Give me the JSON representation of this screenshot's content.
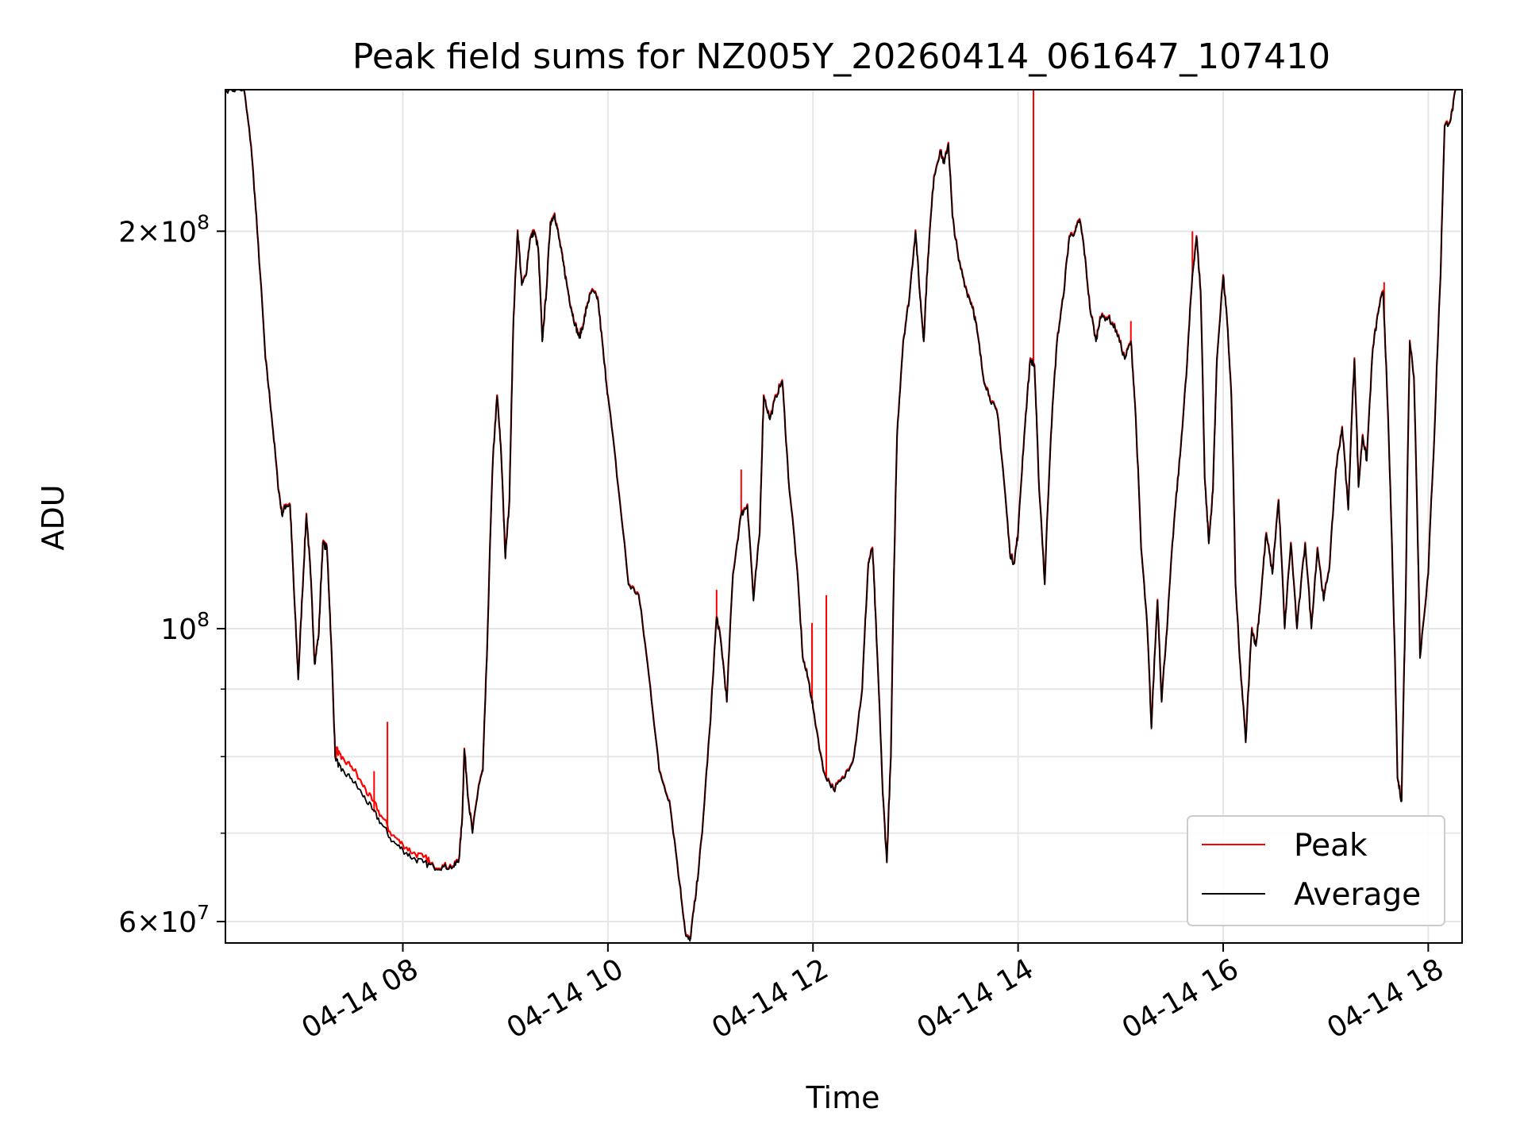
{
  "chart_data": {
    "type": "line",
    "title": "Peak field sums for NZ005Y_20260414_061647_107410",
    "xlabel": "Time",
    "ylabel": "ADU",
    "yscale": "log",
    "xlim_hours": [
      6.27,
      18.33
    ],
    "ylim": [
      57800000,
      256000000
    ],
    "grid": true,
    "legend_position": "lower-right",
    "x_ticks": [
      {
        "hour": 8,
        "label": "04-14 08"
      },
      {
        "hour": 10,
        "label": "04-14 10"
      },
      {
        "hour": 12,
        "label": "04-14 12"
      },
      {
        "hour": 14,
        "label": "04-14 14"
      },
      {
        "hour": 16,
        "label": "04-14 16"
      },
      {
        "hour": 18,
        "label": "04-14 18"
      }
    ],
    "y_major_ticks": [
      {
        "value": 60000000,
        "mantissa": "6",
        "exponent": "7"
      },
      {
        "value": 100000000,
        "mantissa": "",
        "exponent": "8"
      },
      {
        "value": 200000000,
        "mantissa": "2",
        "exponent": "8"
      }
    ],
    "y_minor_ticks": [
      70000000,
      80000000,
      90000000
    ],
    "series": [
      {
        "name": "Peak",
        "color": "#ff0000"
      },
      {
        "name": "Average",
        "color": "#000000"
      }
    ],
    "average_points": [
      [
        6.27,
        256
      ],
      [
        6.45,
        256
      ],
      [
        6.52,
        232
      ],
      [
        6.58,
        200
      ],
      [
        6.66,
        160
      ],
      [
        6.72,
        145
      ],
      [
        6.78,
        129
      ],
      [
        6.82,
        122
      ],
      [
        6.86,
        124
      ],
      [
        6.9,
        124
      ],
      [
        6.94,
        106
      ],
      [
        6.98,
        91.5
      ],
      [
        7.02,
        106
      ],
      [
        7.06,
        122
      ],
      [
        7.1,
        110
      ],
      [
        7.14,
        94
      ],
      [
        7.18,
        99
      ],
      [
        7.22,
        116
      ],
      [
        7.26,
        115
      ],
      [
        7.3,
        98
      ],
      [
        7.34,
        80
      ],
      [
        7.4,
        78
      ],
      [
        7.5,
        77
      ],
      [
        7.6,
        75
      ],
      [
        7.7,
        73
      ],
      [
        7.8,
        71
      ],
      [
        7.9,
        69
      ],
      [
        8.0,
        68
      ],
      [
        8.1,
        67
      ],
      [
        8.2,
        66.5
      ],
      [
        8.3,
        66
      ],
      [
        8.4,
        66
      ],
      [
        8.5,
        66
      ],
      [
        8.55,
        67
      ],
      [
        8.58,
        72
      ],
      [
        8.6,
        81
      ],
      [
        8.64,
        74
      ],
      [
        8.68,
        70
      ],
      [
        8.74,
        76
      ],
      [
        8.78,
        78
      ],
      [
        8.82,
        95
      ],
      [
        8.88,
        135
      ],
      [
        8.92,
        150
      ],
      [
        8.96,
        135
      ],
      [
        9.0,
        113
      ],
      [
        9.04,
        125
      ],
      [
        9.08,
        172
      ],
      [
        9.12,
        200
      ],
      [
        9.16,
        182
      ],
      [
        9.2,
        185
      ],
      [
        9.24,
        197
      ],
      [
        9.28,
        200
      ],
      [
        9.32,
        194
      ],
      [
        9.36,
        165
      ],
      [
        9.4,
        180
      ],
      [
        9.44,
        203
      ],
      [
        9.48,
        206
      ],
      [
        9.52,
        198
      ],
      [
        9.56,
        190
      ],
      [
        9.6,
        182
      ],
      [
        9.64,
        175
      ],
      [
        9.68,
        170
      ],
      [
        9.72,
        166
      ],
      [
        9.76,
        170
      ],
      [
        9.8,
        176
      ],
      [
        9.84,
        180
      ],
      [
        9.9,
        178
      ],
      [
        9.96,
        160
      ],
      [
        10.0,
        150
      ],
      [
        10.1,
        128
      ],
      [
        10.2,
        108
      ],
      [
        10.3,
        106
      ],
      [
        10.4,
        92
      ],
      [
        10.5,
        78
      ],
      [
        10.6,
        74
      ],
      [
        10.7,
        64
      ],
      [
        10.76,
        58.5
      ],
      [
        10.8,
        58
      ],
      [
        10.86,
        63
      ],
      [
        10.92,
        70
      ],
      [
        11.0,
        85
      ],
      [
        11.06,
        102
      ],
      [
        11.1,
        98
      ],
      [
        11.16,
        88
      ],
      [
        11.22,
        110
      ],
      [
        11.3,
        122
      ],
      [
        11.36,
        124
      ],
      [
        11.42,
        105
      ],
      [
        11.48,
        118
      ],
      [
        11.52,
        150
      ],
      [
        11.58,
        144
      ],
      [
        11.64,
        150
      ],
      [
        11.7,
        154
      ],
      [
        11.76,
        130
      ],
      [
        11.84,
        112
      ],
      [
        11.9,
        95
      ],
      [
        11.96,
        91
      ],
      [
        12.0,
        87
      ],
      [
        12.1,
        78
      ],
      [
        12.2,
        75.5
      ],
      [
        12.3,
        77
      ],
      [
        12.4,
        80
      ],
      [
        12.48,
        90
      ],
      [
        12.54,
        112
      ],
      [
        12.58,
        115
      ],
      [
        12.62,
        98
      ],
      [
        12.68,
        75
      ],
      [
        12.72,
        66.5
      ],
      [
        12.76,
        80
      ],
      [
        12.82,
        140
      ],
      [
        12.88,
        165
      ],
      [
        12.94,
        178
      ],
      [
        13.0,
        200
      ],
      [
        13.04,
        180
      ],
      [
        13.08,
        165
      ],
      [
        13.12,
        190
      ],
      [
        13.18,
        220
      ],
      [
        13.24,
        230
      ],
      [
        13.28,
        225
      ],
      [
        13.32,
        233
      ],
      [
        13.36,
        205
      ],
      [
        13.42,
        190
      ],
      [
        13.5,
        180
      ],
      [
        13.56,
        175
      ],
      [
        13.6,
        168
      ],
      [
        13.66,
        155
      ],
      [
        13.72,
        150
      ],
      [
        13.8,
        145
      ],
      [
        13.86,
        130
      ],
      [
        13.92,
        114
      ],
      [
        13.96,
        112
      ],
      [
        14.0,
        118
      ],
      [
        14.06,
        140
      ],
      [
        14.12,
        160
      ],
      [
        14.16,
        158
      ],
      [
        14.2,
        130
      ],
      [
        14.26,
        108
      ],
      [
        14.32,
        140
      ],
      [
        14.38,
        165
      ],
      [
        14.44,
        178
      ],
      [
        14.5,
        198
      ],
      [
        14.56,
        200
      ],
      [
        14.6,
        204
      ],
      [
        14.64,
        195
      ],
      [
        14.7,
        175
      ],
      [
        14.76,
        165
      ],
      [
        14.8,
        172
      ],
      [
        14.88,
        172
      ],
      [
        14.96,
        168
      ],
      [
        15.04,
        160
      ],
      [
        15.1,
        165
      ],
      [
        15.14,
        148
      ],
      [
        15.2,
        115
      ],
      [
        15.26,
        100
      ],
      [
        15.3,
        84
      ],
      [
        15.36,
        105
      ],
      [
        15.4,
        88
      ],
      [
        15.46,
        102
      ],
      [
        15.52,
        120
      ],
      [
        15.58,
        135
      ],
      [
        15.64,
        155
      ],
      [
        15.7,
        185
      ],
      [
        15.74,
        198
      ],
      [
        15.78,
        180
      ],
      [
        15.82,
        130
      ],
      [
        15.86,
        116
      ],
      [
        15.9,
        127
      ],
      [
        15.94,
        160
      ],
      [
        16.0,
        185
      ],
      [
        16.04,
        170
      ],
      [
        16.08,
        150
      ],
      [
        16.12,
        108
      ],
      [
        16.16,
        95
      ],
      [
        16.22,
        82
      ],
      [
        16.28,
        100
      ],
      [
        16.32,
        97
      ],
      [
        16.36,
        104
      ],
      [
        16.42,
        118
      ],
      [
        16.48,
        110
      ],
      [
        16.54,
        125
      ],
      [
        16.6,
        100
      ],
      [
        16.66,
        116
      ],
      [
        16.72,
        100
      ],
      [
        16.8,
        116
      ],
      [
        16.86,
        100
      ],
      [
        16.92,
        115
      ],
      [
        16.98,
        105
      ],
      [
        17.04,
        112
      ],
      [
        17.1,
        132
      ],
      [
        17.16,
        142
      ],
      [
        17.22,
        123
      ],
      [
        17.28,
        160
      ],
      [
        17.32,
        128
      ],
      [
        17.36,
        140
      ],
      [
        17.4,
        134
      ],
      [
        17.46,
        163
      ],
      [
        17.52,
        175
      ],
      [
        17.56,
        180
      ],
      [
        17.6,
        150
      ],
      [
        17.66,
        105
      ],
      [
        17.7,
        77
      ],
      [
        17.74,
        74
      ],
      [
        17.78,
        105
      ],
      [
        17.82,
        165
      ],
      [
        17.86,
        155
      ],
      [
        17.92,
        95
      ],
      [
        18.0,
        110
      ],
      [
        18.06,
        140
      ],
      [
        18.12,
        185
      ],
      [
        18.16,
        240
      ],
      [
        18.22,
        243
      ],
      [
        18.27,
        256
      ]
    ],
    "peak_deviations": [
      {
        "x": 7.4,
        "dy": 1.5
      },
      {
        "x": 7.5,
        "dy": 1.5
      },
      {
        "x": 7.6,
        "dy": 1.2
      },
      {
        "x": 7.7,
        "dy": 1.0
      },
      {
        "x": 7.8,
        "dy": 0.8
      },
      {
        "x": 7.9,
        "dy": 0.6
      },
      {
        "x": 8.0,
        "dy": 0.5
      },
      {
        "x": 8.1,
        "dy": 0.5
      },
      {
        "x": 8.2,
        "dy": 0.5
      }
    ],
    "peak_spikes": [
      {
        "x": 7.72,
        "y": 78
      },
      {
        "x": 7.85,
        "y": 85
      },
      {
        "x": 11.06,
        "y": 107
      },
      {
        "x": 11.3,
        "y": 132
      },
      {
        "x": 11.99,
        "y": 101
      },
      {
        "x": 12.13,
        "y": 106
      },
      {
        "x": 14.15,
        "y": 256
      },
      {
        "x": 15.1,
        "y": 171
      },
      {
        "x": 15.7,
        "y": 200
      },
      {
        "x": 17.57,
        "y": 183
      }
    ],
    "y_units_note": "average_points and peak spike y values are in millions of ADU"
  }
}
